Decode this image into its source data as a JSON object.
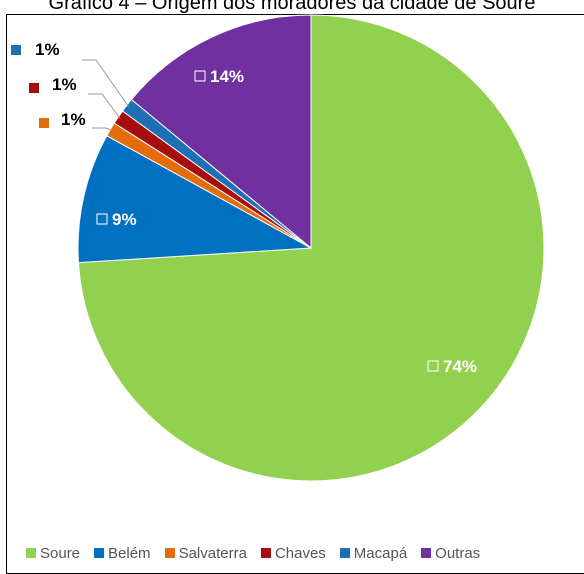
{
  "chart_data": {
    "type": "pie",
    "title": "Gráfico 4 – Origem dos moradores da cidade de Soure",
    "categories": [
      "Soure",
      "Belém",
      "Salvaterra",
      "Chaves",
      "Macapá",
      "Outras"
    ],
    "values": [
      74,
      9,
      1,
      1,
      1,
      14
    ],
    "labels": [
      "74%",
      "9%",
      "1%",
      "1%",
      "1%",
      "14%"
    ],
    "colors": [
      "#92d050",
      "#0070c0",
      "#e46c0a",
      "#a50f0f",
      "#1f6fb5",
      "#7030a0"
    ],
    "legend_position": "bottom"
  }
}
